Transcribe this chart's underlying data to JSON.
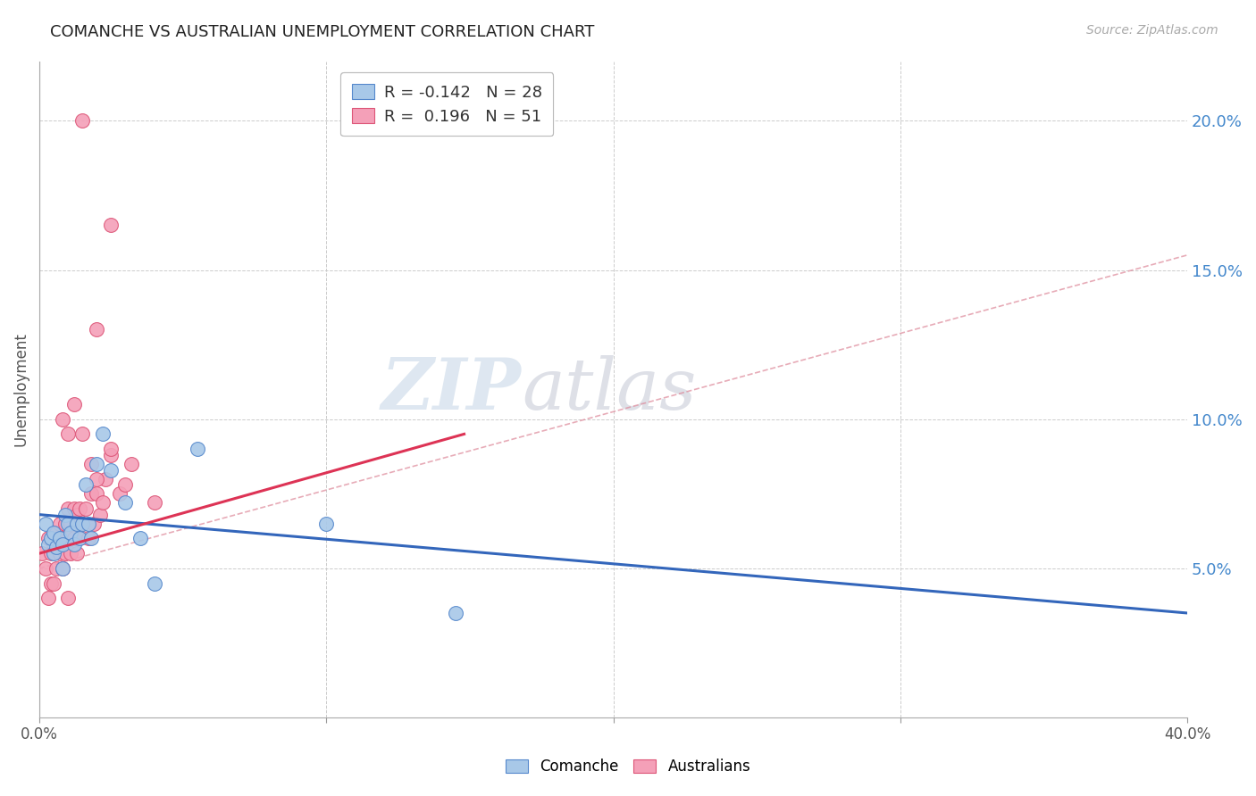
{
  "title": "COMANCHE VS AUSTRALIAN UNEMPLOYMENT CORRELATION CHART",
  "source": "Source: ZipAtlas.com",
  "ylabel": "Unemployment",
  "xlim": [
    0.0,
    0.4
  ],
  "ylim": [
    0.0,
    0.22
  ],
  "yticks": [
    0.05,
    0.1,
    0.15,
    0.2
  ],
  "ytick_labels": [
    "5.0%",
    "10.0%",
    "15.0%",
    "20.0%"
  ],
  "xticks": [
    0.0,
    0.1,
    0.2,
    0.3,
    0.4
  ],
  "xtick_labels": [
    "0.0%",
    "",
    "",
    "",
    "40.0%"
  ],
  "comanche_color": "#a8c8e8",
  "australians_color": "#f4a0b8",
  "comanche_edge": "#5588cc",
  "australians_edge": "#dd5577",
  "trend_blue": "#3366bb",
  "trend_pink": "#dd3355",
  "trend_dashed_color": "#dd8899",
  "watermark_text": "ZIPatlas",
  "background_color": "#ffffff",
  "comanche_x": [
    0.002,
    0.003,
    0.004,
    0.005,
    0.005,
    0.006,
    0.007,
    0.008,
    0.008,
    0.009,
    0.01,
    0.011,
    0.012,
    0.013,
    0.014,
    0.015,
    0.016,
    0.017,
    0.018,
    0.02,
    0.022,
    0.025,
    0.03,
    0.035,
    0.04,
    0.055,
    0.1,
    0.145
  ],
  "comanche_y": [
    0.065,
    0.058,
    0.06,
    0.055,
    0.062,
    0.057,
    0.06,
    0.05,
    0.058,
    0.068,
    0.065,
    0.062,
    0.058,
    0.065,
    0.06,
    0.065,
    0.078,
    0.065,
    0.06,
    0.085,
    0.095,
    0.083,
    0.072,
    0.06,
    0.045,
    0.09,
    0.065,
    0.035
  ],
  "australians_x": [
    0.001,
    0.002,
    0.003,
    0.003,
    0.004,
    0.004,
    0.005,
    0.005,
    0.006,
    0.006,
    0.007,
    0.007,
    0.008,
    0.008,
    0.009,
    0.009,
    0.01,
    0.01,
    0.011,
    0.011,
    0.012,
    0.012,
    0.013,
    0.013,
    0.014,
    0.014,
    0.015,
    0.016,
    0.017,
    0.018,
    0.019,
    0.02,
    0.021,
    0.022,
    0.023,
    0.025,
    0.028,
    0.03,
    0.032,
    0.04,
    0.008,
    0.01,
    0.012,
    0.015,
    0.018,
    0.02,
    0.025,
    0.015,
    0.025,
    0.02,
    0.01
  ],
  "australians_y": [
    0.055,
    0.05,
    0.06,
    0.04,
    0.055,
    0.045,
    0.058,
    0.045,
    0.062,
    0.05,
    0.065,
    0.055,
    0.06,
    0.05,
    0.065,
    0.055,
    0.07,
    0.06,
    0.065,
    0.055,
    0.07,
    0.06,
    0.068,
    0.055,
    0.07,
    0.06,
    0.065,
    0.07,
    0.06,
    0.075,
    0.065,
    0.075,
    0.068,
    0.072,
    0.08,
    0.088,
    0.075,
    0.078,
    0.085,
    0.072,
    0.1,
    0.095,
    0.105,
    0.095,
    0.085,
    0.08,
    0.09,
    0.2,
    0.165,
    0.13,
    0.04
  ],
  "blue_trend_x": [
    0.0,
    0.4
  ],
  "blue_trend_y": [
    0.068,
    0.035
  ],
  "pink_trend_x": [
    0.0,
    0.148
  ],
  "pink_trend_y": [
    0.055,
    0.095
  ],
  "dashed_trend_x": [
    0.0,
    0.4
  ],
  "dashed_trend_y": [
    0.05,
    0.155
  ]
}
